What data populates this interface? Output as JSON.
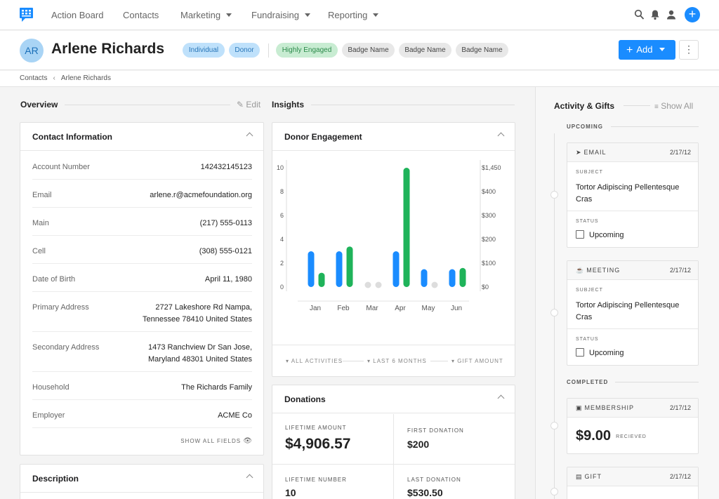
{
  "nav": {
    "items": [
      {
        "label": "Action Board",
        "caret": false
      },
      {
        "label": "Contacts",
        "caret": false
      },
      {
        "label": "Marketing",
        "caret": true
      },
      {
        "label": "Fundraising",
        "caret": true
      },
      {
        "label": "Reporting",
        "caret": true
      }
    ],
    "icons": [
      "search-icon",
      "bell-icon",
      "user-icon",
      "plus-circle-icon"
    ],
    "accent": "#1a8cff"
  },
  "contact": {
    "initials": "AR",
    "name": "Arlene Richards",
    "badges": [
      {
        "label": "Individual",
        "tone": "blue"
      },
      {
        "label": "Donor",
        "tone": "blue"
      },
      {
        "label": "Highly Engaged",
        "tone": "green"
      },
      {
        "label": "Badge Name",
        "tone": "gray"
      },
      {
        "label": "Badge Name",
        "tone": "gray"
      },
      {
        "label": "Badge Name",
        "tone": "gray"
      }
    ],
    "add_label": "Add"
  },
  "breadcrumb": [
    "Contacts",
    "Arlene Richards"
  ],
  "overview": {
    "title": "Overview",
    "edit_label": "Edit",
    "contact_info": {
      "title": "Contact Information",
      "fields": [
        {
          "label": "Account Number",
          "value": [
            "142432145123"
          ]
        },
        {
          "label": "Email",
          "value": [
            "arlene.r@acmefoundation.org"
          ]
        },
        {
          "label": "Main",
          "value": [
            "(217) 555-0113"
          ]
        },
        {
          "label": "Cell",
          "value": [
            "(308) 555-0121"
          ]
        },
        {
          "label": "Date of Birth",
          "value": [
            "April 11, 1980"
          ]
        },
        {
          "label": "Primary Address",
          "value": [
            "2727 Lakeshore Rd Nampa,",
            "Tennessee 78410 United States"
          ]
        },
        {
          "label": "Secondary Address",
          "value": [
            "1473 Ranchview Dr San Jose,",
            "Maryland 48301 United States"
          ]
        },
        {
          "label": "Household",
          "value": [
            "The Richards Family"
          ]
        },
        {
          "label": "Employer",
          "value": [
            "ACME Co"
          ]
        }
      ],
      "show_all": "SHOW ALL FIELDS"
    },
    "description_title": "Description"
  },
  "insights": {
    "title": "Insights",
    "engagement": {
      "title": "Donor Engagement",
      "filters": [
        "ALL ACTIVITIES",
        "LAST 6 MONTHS",
        "GIFT AMOUNT"
      ]
    },
    "donations": {
      "title": "Donations",
      "stats": [
        {
          "label": "LIFETIME AMOUNT",
          "value": "$4,906.57"
        },
        {
          "label": "FIRST DONATION",
          "value": "$200"
        },
        {
          "label": "LIFETIME NUMBER",
          "value": "10"
        },
        {
          "label": "LAST DONATION",
          "value": "$530.50"
        }
      ]
    }
  },
  "chart_data": {
    "type": "bar",
    "categories": [
      "Jan",
      "Feb",
      "Mar",
      "Apr",
      "May",
      "Jun"
    ],
    "series": [
      {
        "axis": "left",
        "color": "#1a8cff",
        "values": [
          3,
          3,
          0,
          3,
          1.5,
          1.5
        ]
      },
      {
        "axis": "right",
        "color": "#1fb35a",
        "values": [
          60,
          170,
          0,
          1450,
          0,
          80
        ]
      }
    ],
    "left_axis": {
      "ticks": [
        "10",
        "8",
        "6",
        "4",
        "2",
        "0"
      ],
      "ylim": [
        0,
        10
      ]
    },
    "right_axis": {
      "ticks": [
        "$1,450",
        "$400",
        "$300",
        "$200",
        "$100",
        "$0"
      ]
    },
    "zero_marker_color": "#dddddd",
    "grid": false,
    "legend": "none"
  },
  "activity": {
    "title": "Activity & Gifts",
    "show_all": "Show All",
    "upcoming_label": "UPCOMING",
    "completed_label": "COMPLETED",
    "upcoming": [
      {
        "type": "EMAIL",
        "icon": "send-icon",
        "date": "2/17/12",
        "subject_label": "SUBJECT",
        "subject": [
          "Tortor Adipiscing Pellentesque",
          "Cras"
        ],
        "status_label": "STATUS",
        "status": "Upcoming"
      },
      {
        "type": "MEETING",
        "icon": "coffee-icon",
        "date": "2/17/12",
        "subject_label": "SUBJECT",
        "subject": [
          "Tortor Adipiscing Pellentesque",
          "Cras"
        ],
        "status_label": "STATUS",
        "status": "Upcoming"
      }
    ],
    "completed": [
      {
        "type": "MEMBERSHIP",
        "icon": "id-card-icon",
        "date": "2/17/12",
        "amount": "$9.00",
        "note": "RECIEVED"
      },
      {
        "type": "GIFT",
        "icon": "gift-icon",
        "date": "2/17/12"
      }
    ]
  }
}
